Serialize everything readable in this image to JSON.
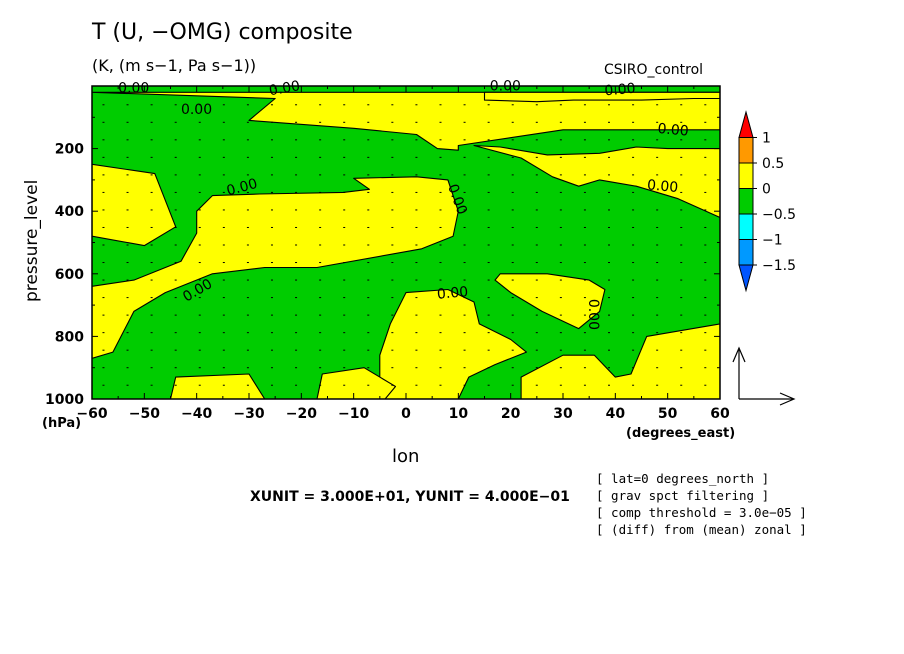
{
  "header": {
    "title": "T (U, −OMG) composite",
    "units": "(K, (m s−1, Pa s−1))",
    "source": "CSIRO_control"
  },
  "axes": {
    "xlabel": "lon",
    "ylabel": "pressure_level",
    "xunit": "(degrees_east)",
    "yunit": "(hPa)"
  },
  "vector_scale": "XUNIT = 3.000E+01, YUNIT = 4.000E−01",
  "notes": [
    "[ lat=0 degrees_north ]",
    "[ grav spct filtering ]",
    "[ comp threshold = 3.0e−05 ]",
    "[ (diff) from (mean) zonal ]"
  ],
  "colors": {
    "positive": "#ffff00",
    "negative": "#00cc00",
    "contour": "#000000"
  },
  "chart_data": {
    "type": "contour",
    "x": {
      "label": "lon",
      "unit": "degrees_east",
      "range": [
        -60,
        60
      ],
      "ticks": [
        -60,
        -50,
        -40,
        -30,
        -20,
        -10,
        0,
        10,
        20,
        30,
        40,
        50,
        60
      ],
      "tick_labels": [
        "−60",
        "−50",
        "−40",
        "−30",
        "−20",
        "−10",
        "0",
        "10",
        "20",
        "30",
        "40",
        "50",
        "60"
      ]
    },
    "y": {
      "label": "pressure_level",
      "unit": "hPa",
      "range": [
        1000,
        0
      ],
      "reversed": true,
      "ticks": [
        200,
        400,
        600,
        800,
        1000
      ],
      "tick_labels": [
        "200",
        "400",
        "600",
        "800",
        "1000"
      ]
    },
    "contour_label": "0.00",
    "colorbar": {
      "levels": [
        "1",
        "0.5",
        "0",
        "−0.5",
        "−1",
        "−1.5"
      ],
      "colors": [
        "#ff0000",
        "#ff9900",
        "#ffff00",
        "#00cc00",
        "#00ffff",
        "#0099ff",
        "#0055ff"
      ]
    },
    "regions": [
      {
        "sign": "positive",
        "polygon": [
          [
            -60,
            20
          ],
          [
            -25,
            40
          ],
          [
            -30,
            110
          ],
          [
            -10,
            135
          ],
          [
            2,
            155
          ],
          [
            6,
            200
          ],
          [
            10,
            205
          ],
          [
            10,
            190
          ],
          [
            30,
            140
          ],
          [
            60,
            140
          ],
          [
            60,
            20
          ]
        ]
      },
      {
        "sign": "positive",
        "polygon": [
          [
            -60,
            250
          ],
          [
            -48,
            280
          ],
          [
            -44,
            450
          ],
          [
            -50,
            510
          ],
          [
            -60,
            480
          ]
        ]
      },
      {
        "sign": "positive",
        "polygon": [
          [
            -37,
            350
          ],
          [
            -28,
            345
          ],
          [
            -12,
            340
          ],
          [
            -7,
            330
          ],
          [
            -10,
            295
          ],
          [
            2,
            290
          ],
          [
            8,
            300
          ],
          [
            10,
            400
          ],
          [
            9,
            480
          ],
          [
            3,
            520
          ],
          [
            -17,
            580
          ],
          [
            -27,
            580
          ],
          [
            -37,
            600
          ],
          [
            -46,
            660
          ],
          [
            -52,
            720
          ],
          [
            -56,
            850
          ],
          [
            -60,
            870
          ],
          [
            -60,
            640
          ],
          [
            -52,
            620
          ],
          [
            -43,
            560
          ],
          [
            -40,
            470
          ],
          [
            -40,
            400
          ]
        ]
      },
      {
        "sign": "positive",
        "polygon": [
          [
            13,
            190
          ],
          [
            22,
            230
          ],
          [
            28,
            290
          ],
          [
            33,
            320
          ],
          [
            37,
            300
          ],
          [
            44,
            320
          ],
          [
            52,
            360
          ],
          [
            60,
            420
          ],
          [
            60,
            200
          ],
          [
            50,
            200
          ],
          [
            44,
            195
          ],
          [
            37,
            215
          ],
          [
            27,
            220
          ],
          [
            18,
            195
          ]
        ]
      },
      {
        "sign": "positive",
        "polygon": [
          [
            18,
            600
          ],
          [
            27,
            600
          ],
          [
            35,
            620
          ],
          [
            38,
            650
          ],
          [
            37,
            720
          ],
          [
            33,
            775
          ],
          [
            26,
            720
          ],
          [
            20,
            660
          ],
          [
            17,
            620
          ]
        ]
      },
      {
        "sign": "positive",
        "polygon": [
          [
            0,
            660
          ],
          [
            8,
            650
          ],
          [
            13,
            690
          ],
          [
            14,
            760
          ],
          [
            20,
            810
          ],
          [
            23,
            850
          ],
          [
            17,
            890
          ],
          [
            12,
            930
          ],
          [
            10,
            1000
          ],
          [
            -5,
            1000
          ],
          [
            -5,
            860
          ],
          [
            -3,
            760
          ]
        ]
      },
      {
        "sign": "positive",
        "polygon": [
          [
            -45,
            1000
          ],
          [
            -44,
            930
          ],
          [
            -30,
            920
          ],
          [
            -27,
            1000
          ]
        ]
      },
      {
        "sign": "positive",
        "polygon": [
          [
            -17,
            1000
          ],
          [
            -16,
            920
          ],
          [
            -8,
            900
          ],
          [
            -2,
            960
          ],
          [
            -4,
            1000
          ]
        ]
      },
      {
        "sign": "positive",
        "polygon": [
          [
            22,
            1000
          ],
          [
            22,
            930
          ],
          [
            30,
            860
          ],
          [
            36,
            860
          ],
          [
            40,
            930
          ],
          [
            43,
            920
          ],
          [
            46,
            800
          ],
          [
            60,
            760
          ],
          [
            60,
            1000
          ]
        ]
      },
      {
        "sign": "positive",
        "polygon": [
          [
            15,
            20
          ],
          [
            15,
            45
          ],
          [
            25,
            50
          ],
          [
            32,
            45
          ],
          [
            45,
            45
          ],
          [
            55,
            40
          ],
          [
            60,
            40
          ],
          [
            60,
            20
          ]
        ]
      }
    ]
  }
}
